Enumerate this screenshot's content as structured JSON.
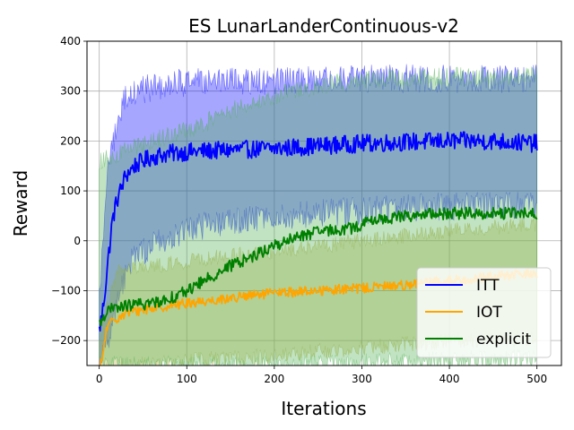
{
  "chart_data": {
    "type": "line",
    "title": "ES LunarLanderContinuous-v2",
    "xlabel": "Iterations",
    "ylabel": "Reward",
    "xlim": [
      -14,
      528
    ],
    "ylim": [
      -250,
      400
    ],
    "xticks": [
      0,
      100,
      200,
      300,
      400,
      500
    ],
    "yticks": [
      -200,
      -100,
      0,
      100,
      200,
      300,
      400
    ],
    "grid": true,
    "legend_position": "lower-right",
    "series": [
      {
        "name": "ITT",
        "color": "#0000ff",
        "band_color": "#0000ff",
        "keypoints": [
          [
            0,
            -180
          ],
          [
            3,
            -150
          ],
          [
            6,
            -110
          ],
          [
            10,
            -40
          ],
          [
            15,
            40
          ],
          [
            20,
            80
          ],
          [
            25,
            105
          ],
          [
            30,
            130
          ],
          [
            40,
            150
          ],
          [
            50,
            160
          ],
          [
            60,
            168
          ],
          [
            80,
            175
          ],
          [
            100,
            178
          ],
          [
            150,
            182
          ],
          [
            200,
            185
          ],
          [
            250,
            190
          ],
          [
            300,
            195
          ],
          [
            350,
            198
          ],
          [
            400,
            200
          ],
          [
            450,
            200
          ],
          [
            500,
            195
          ]
        ],
        "noise": 18,
        "band_lower": [
          [
            0,
            -250
          ],
          [
            10,
            -200
          ],
          [
            20,
            -120
          ],
          [
            40,
            -30
          ],
          [
            80,
            10
          ],
          [
            120,
            30
          ],
          [
            200,
            50
          ],
          [
            300,
            60
          ],
          [
            400,
            70
          ],
          [
            500,
            70
          ]
        ],
        "band_upper": [
          [
            0,
            -120
          ],
          [
            10,
            150
          ],
          [
            20,
            230
          ],
          [
            30,
            290
          ],
          [
            40,
            300
          ],
          [
            80,
            315
          ],
          [
            150,
            320
          ],
          [
            200,
            320
          ],
          [
            300,
            325
          ],
          [
            400,
            325
          ],
          [
            500,
            325
          ]
        ]
      },
      {
        "name": "IOT",
        "color": "#ffa500",
        "band_color": "#b8b040",
        "keypoints": [
          [
            0,
            -260
          ],
          [
            3,
            -240
          ],
          [
            8,
            -180
          ],
          [
            15,
            -160
          ],
          [
            30,
            -145
          ],
          [
            60,
            -135
          ],
          [
            100,
            -125
          ],
          [
            150,
            -115
          ],
          [
            200,
            -105
          ],
          [
            250,
            -100
          ],
          [
            300,
            -95
          ],
          [
            350,
            -88
          ],
          [
            400,
            -80
          ],
          [
            450,
            -72
          ],
          [
            500,
            -65
          ]
        ],
        "noise": 10,
        "band_lower": [
          [
            0,
            -260
          ],
          [
            30,
            -250
          ],
          [
            100,
            -240
          ],
          [
            200,
            -230
          ],
          [
            300,
            -215
          ],
          [
            400,
            -200
          ],
          [
            500,
            -195
          ]
        ],
        "band_upper": [
          [
            0,
            -200
          ],
          [
            20,
            -60
          ],
          [
            100,
            -40
          ],
          [
            200,
            -20
          ],
          [
            300,
            0
          ],
          [
            400,
            20
          ],
          [
            500,
            35
          ]
        ]
      },
      {
        "name": "explicit",
        "color": "#008000",
        "band_color": "#4caf50",
        "keypoints": [
          [
            0,
            -170
          ],
          [
            5,
            -150
          ],
          [
            10,
            -140
          ],
          [
            30,
            -130
          ],
          [
            60,
            -125
          ],
          [
            90,
            -110
          ],
          [
            110,
            -90
          ],
          [
            130,
            -70
          ],
          [
            150,
            -50
          ],
          [
            170,
            -35
          ],
          [
            200,
            -10
          ],
          [
            230,
            10
          ],
          [
            260,
            20
          ],
          [
            290,
            25
          ],
          [
            310,
            40
          ],
          [
            350,
            50
          ],
          [
            400,
            55
          ],
          [
            450,
            55
          ],
          [
            500,
            55
          ]
        ],
        "noise": 12,
        "band_lower": [
          [
            0,
            -250
          ],
          [
            100,
            -250
          ],
          [
            200,
            -250
          ],
          [
            300,
            -245
          ],
          [
            400,
            -240
          ],
          [
            500,
            -235
          ]
        ],
        "band_upper": [
          [
            0,
            160
          ],
          [
            10,
            170
          ],
          [
            30,
            180
          ],
          [
            60,
            200
          ],
          [
            100,
            220
          ],
          [
            150,
            260
          ],
          [
            200,
            290
          ],
          [
            250,
            310
          ],
          [
            300,
            325
          ],
          [
            400,
            330
          ],
          [
            500,
            330
          ]
        ]
      }
    ]
  }
}
